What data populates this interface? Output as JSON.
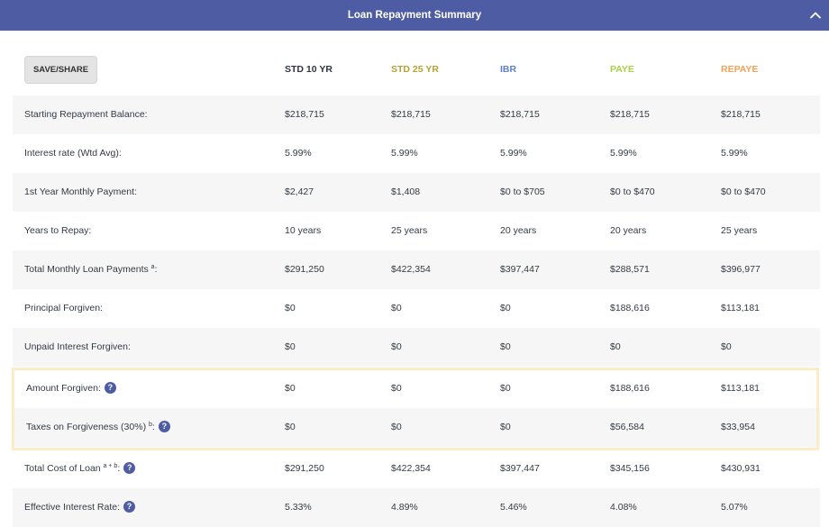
{
  "header": {
    "title": "Loan Repayment Summary",
    "collapse_icon": "chevron-up-icon"
  },
  "save_share_label": "SAVE/SHARE",
  "columns": [
    {
      "label": "STD 10 YR",
      "color": "#2f3640"
    },
    {
      "label": "STD 25 YR",
      "color": "#b5a232"
    },
    {
      "label": "IBR",
      "color": "#5b7fd1"
    },
    {
      "label": "PAYE",
      "color": "#a9d046"
    },
    {
      "label": "REPAYE",
      "color": "#f5a158"
    }
  ],
  "rows": [
    {
      "label": "Starting Repayment Balance:",
      "values": [
        "$218,715",
        "$218,715",
        "$218,715",
        "$218,715",
        "$218,715"
      ]
    },
    {
      "label": "Interest rate (Wtd Avg):",
      "values": [
        "5.99%",
        "5.99%",
        "5.99%",
        "5.99%",
        "5.99%"
      ]
    },
    {
      "label": "1st Year Monthly Payment:",
      "values": [
        "$2,427",
        "$1,408",
        "$0 to $705",
        "$0 to $470",
        "$0 to $470"
      ]
    },
    {
      "label": "Years to Repay:",
      "values": [
        "10 years",
        "25 years",
        "20 years",
        "20 years",
        "25 years"
      ]
    },
    {
      "label": "Total Monthly Loan Payments",
      "sup": "a",
      "suffix": ":",
      "values": [
        "$291,250",
        "$422,354",
        "$397,447",
        "$288,571",
        "$396,977"
      ]
    },
    {
      "label": "Principal Forgiven:",
      "values": [
        "$0",
        "$0",
        "$0",
        "$188,616",
        "$113,181"
      ]
    },
    {
      "label": "Unpaid Interest Forgiven:",
      "values": [
        "$0",
        "$0",
        "$0",
        "$0",
        "$0"
      ]
    },
    {
      "label": "Amount Forgiven:",
      "help": "?",
      "values": [
        "$0",
        "$0",
        "$0",
        "$188,616",
        "$113,181"
      ]
    },
    {
      "label": "Taxes on Forgiveness (30%)",
      "sup": "b",
      "suffix": ":",
      "help": "?",
      "values": [
        "$0",
        "$0",
        "$0",
        "$56,584",
        "$33,954"
      ]
    },
    {
      "label": "Total Cost of Loan",
      "sup": "a + b",
      "suffix": ":",
      "help": "?",
      "values": [
        "$291,250",
        "$422,354",
        "$397,447",
        "$345,156",
        "$430,931"
      ]
    },
    {
      "label": "Effective Interest Rate:",
      "help": "?",
      "values": [
        "5.33%",
        "4.89%",
        "5.46%",
        "4.08%",
        "5.07%"
      ]
    }
  ]
}
